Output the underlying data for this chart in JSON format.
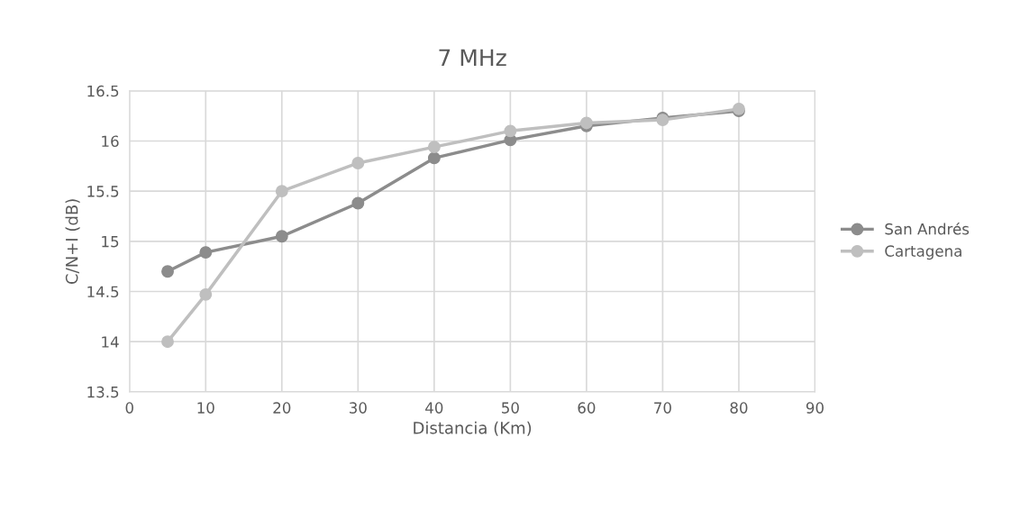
{
  "chart_data": {
    "type": "line",
    "title": "7 MHz",
    "xlabel": "Distancia (Km)",
    "ylabel": "C/N+I (dB)",
    "x": [
      5,
      10,
      20,
      30,
      40,
      50,
      60,
      70,
      80
    ],
    "series": [
      {
        "name": "San Andrés",
        "color": "#8c8c8c",
        "values": [
          14.7,
          14.89,
          15.05,
          15.38,
          15.83,
          16.01,
          16.15,
          16.23,
          16.3
        ]
      },
      {
        "name": "Cartagena",
        "color": "#bfbfbf",
        "values": [
          14.0,
          14.47,
          15.5,
          15.78,
          15.94,
          16.1,
          16.18,
          16.21,
          16.32
        ]
      }
    ],
    "xlim": [
      0,
      90
    ],
    "xticks": [
      0,
      10,
      20,
      30,
      40,
      50,
      60,
      70,
      80,
      90
    ],
    "ylim": [
      13.5,
      16.5
    ],
    "yticks": [
      13.5,
      14,
      14.5,
      15,
      15.5,
      16,
      16.5
    ],
    "grid": true,
    "legend": "right",
    "marker": "circle",
    "line_style": "solid"
  }
}
